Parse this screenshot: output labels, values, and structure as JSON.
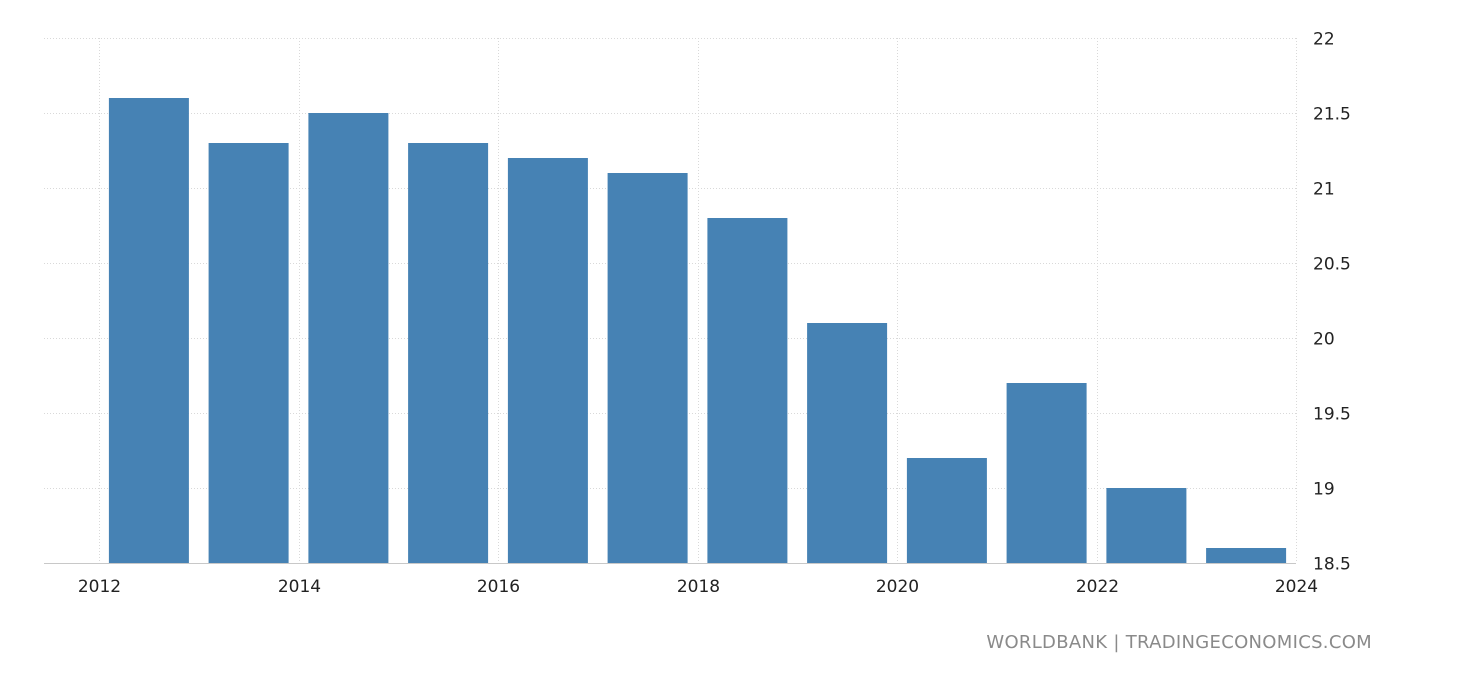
{
  "chart_data": {
    "type": "bar",
    "x": [
      2012.5,
      2013.5,
      2014.5,
      2015.5,
      2016.5,
      2017.5,
      2018.5,
      2019.5,
      2020.5,
      2021.5,
      2022.5,
      2023.5
    ],
    "values": [
      21.6,
      21.3,
      21.5,
      21.3,
      21.2,
      21.1,
      20.8,
      20.1,
      19.2,
      19.7,
      19.0,
      18.6
    ],
    "xlim": [
      2012,
      2024
    ],
    "ylim": [
      18.5,
      22
    ],
    "x_ticks": [
      "2012",
      "2014",
      "2016",
      "2018",
      "2020",
      "2022",
      "2024"
    ],
    "y_ticks": [
      "18.5",
      "19",
      "19.5",
      "20",
      "20.5",
      "21",
      "21.5",
      "22"
    ],
    "y_axis_position": "right",
    "grid": true,
    "bar_color": "#4682b4"
  },
  "footer": {
    "source": "WORLDBANK | TRADINGECONOMICS.COM"
  }
}
